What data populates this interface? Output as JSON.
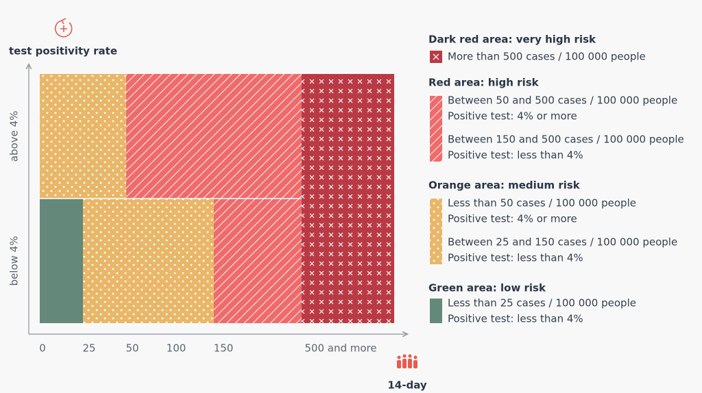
{
  "y_axis": {
    "title": "test positivity rate",
    "labels": [
      "above 4%",
      "below 4%"
    ]
  },
  "x_axis": {
    "title": "14-day",
    "labels": [
      "0",
      "25",
      "50",
      "100",
      "150",
      "500 and more"
    ]
  },
  "legend": [
    {
      "title": "Dark red area: very high risk",
      "items": [
        {
          "lines": [
            "More than 500 cases / 100 000 people"
          ]
        }
      ]
    },
    {
      "title": "Red area: high risk",
      "items": [
        {
          "lines": [
            "Between 50 and 500 cases / 100 000 people",
            "Positive test: 4% or more"
          ]
        },
        {
          "lines": [
            "Between 150 and 500 cases / 100 000 people",
            "Positive test: less than 4%"
          ]
        }
      ]
    },
    {
      "title": "Orange area: medium risk",
      "items": [
        {
          "lines": [
            "Less than 50 cases / 100 000 people",
            "Positive test: 4% or more"
          ]
        },
        {
          "lines": [
            "Between 25 and 150 cases / 100 000 people",
            "Positive test: less than 4%"
          ]
        }
      ]
    },
    {
      "title": "Green area: low risk",
      "items": [
        {
          "lines": [
            "Less than 25 cases / 100 000 people",
            "Positive test: less than 4%"
          ]
        }
      ]
    }
  ]
}
